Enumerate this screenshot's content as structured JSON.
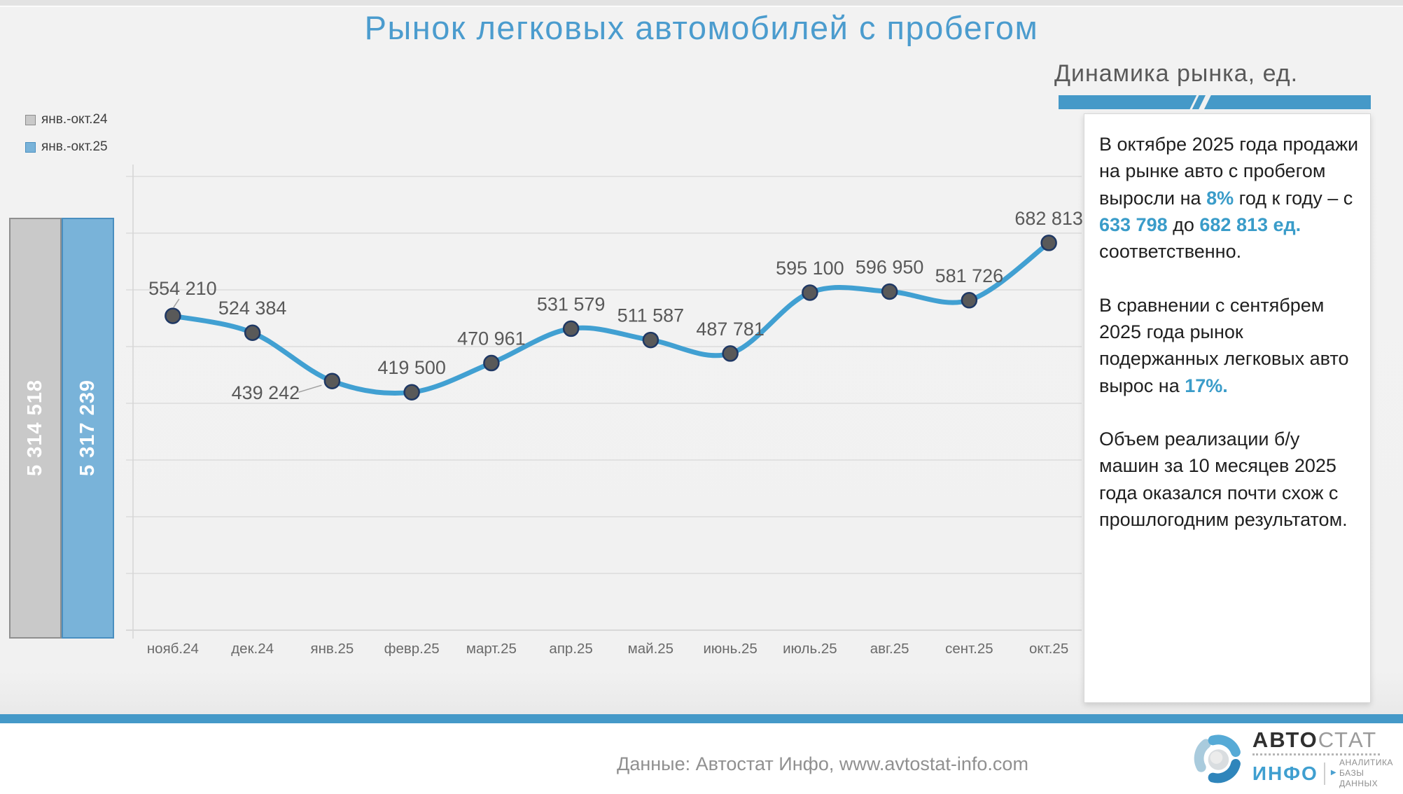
{
  "title": "Рынок легковых автомобилей с пробегом",
  "subtitle": "Динамика рынка, ед.",
  "chart_data": [
    {
      "type": "line",
      "title": "Динамика рынка, ед.",
      "categories": [
        "нояб.24",
        "дек.24",
        "янв.25",
        "февр.25",
        "март.25",
        "апр.25",
        "май.25",
        "июнь.25",
        "июль.25",
        "авг.25",
        "сент.25",
        "окт.25"
      ],
      "values": [
        554210,
        524384,
        439242,
        419500,
        470961,
        531579,
        511587,
        487781,
        595100,
        596950,
        581726,
        682813
      ],
      "point_labels": [
        "554 210",
        "524 384",
        "439 242",
        "419 500",
        "470 961",
        "531 579",
        "511 587",
        "487 781",
        "595 100",
        "596 950",
        "581 726",
        "682 813"
      ],
      "ylim": [
        0,
        800000
      ],
      "grid_step": 100000,
      "grid": "on",
      "legend_position": "none"
    },
    {
      "type": "bar",
      "categories": [
        "янв.-окт.24",
        "янв.-окт.25"
      ],
      "values": [
        5314518,
        5317239
      ],
      "labels": [
        "5 314 518",
        "5 317 239"
      ],
      "colors": [
        "#c9c9c9",
        "#79b3d9"
      ]
    }
  ],
  "callout": {
    "paragraphs": [
      [
        {
          "t": "В октябре 2025 года продажи на рынке авто с пробегом выросли на "
        },
        {
          "t": "8%",
          "accent": true
        },
        {
          "t": " год к году – с "
        },
        {
          "t": "633 798",
          "accent": true
        },
        {
          "t": " до "
        },
        {
          "t": "682 813 ед.",
          "accent": true
        },
        {
          "t": " соответственно."
        }
      ],
      [
        {
          "t": "В сравнении с сентябрем 2025 года рынок подержанных легковых авто вырос на "
        },
        {
          "t": "17%.",
          "accent": true
        }
      ],
      [
        {
          "t": "Объем реализации б/у машин за 10 месяцев 2025 года оказался почти схож с прошлогодним результатом."
        }
      ]
    ]
  },
  "footer": {
    "source": "Данные: Автостат Инфо, www.avtostat-info.com"
  },
  "logo": {
    "brand_bold": "АВТО",
    "brand_light": "СТАТ",
    "sub": "ИНФО",
    "tagline1": "АНАЛИТИКА",
    "tagline2": "БАЗЫ ДАННЫХ"
  },
  "colors": {
    "title_blue": "#4b9cce",
    "band_blue": "#4599c8",
    "accent_blue": "#3a9cc9",
    "line_blue": "#41a0d2",
    "marker_fill": "#595959",
    "marker_ring": "#1f3864",
    "bar_gray": "#c9c9c9",
    "bar_gray_border": "#8f8f8f",
    "bar_blue": "#79b3d9",
    "bar_blue_border": "#4a8fc0",
    "grid_gray": "#dcdcdc",
    "data_label_gray": "#595959",
    "axis_label_gray": "#6a6a6a"
  }
}
